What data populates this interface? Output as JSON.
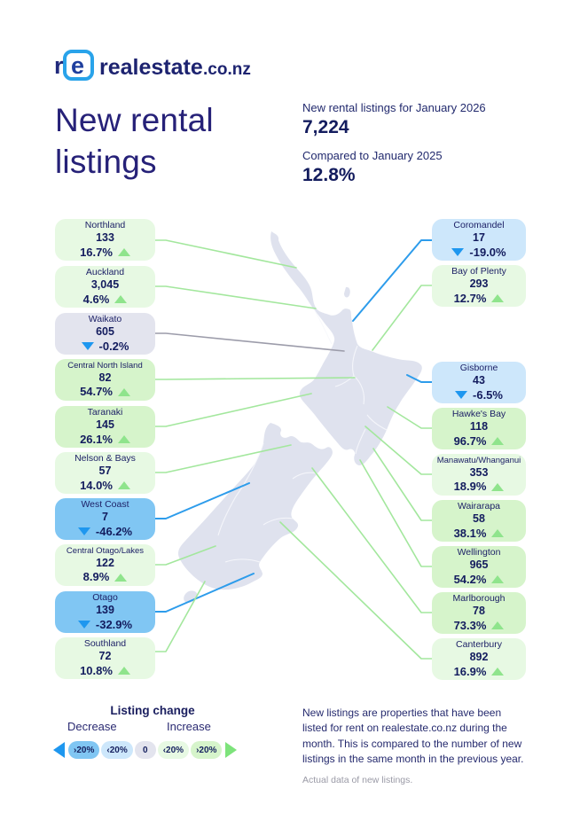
{
  "brand": {
    "logo_text": "realestate",
    "logo_suffix": ".co.nz"
  },
  "title": {
    "line1": "New rental",
    "line2": "listings"
  },
  "stats": {
    "listings_label": "New rental listings for January 2026",
    "listings_value": "7,224",
    "compare_label": "Compared to January 2025",
    "compare_value": "12.8%"
  },
  "regions": [
    {
      "name": "Northland",
      "count": "133",
      "change": "16.7%",
      "change_value": 16.7
    },
    {
      "name": "Auckland",
      "count": "3,045",
      "change": "4.6%",
      "change_value": 4.6
    },
    {
      "name": "Waikato",
      "count": "605",
      "change": "-0.2%",
      "change_value": -0.2
    },
    {
      "name": "Central North Island",
      "count": "82",
      "change": "54.7%",
      "change_value": 54.7
    },
    {
      "name": "Taranaki",
      "count": "145",
      "change": "26.1%",
      "change_value": 26.1
    },
    {
      "name": "Nelson & Bays",
      "count": "57",
      "change": "14.0%",
      "change_value": 14.0
    },
    {
      "name": "West Coast",
      "count": "7",
      "change": "-46.2%",
      "change_value": -46.2
    },
    {
      "name": "Central Otago/Lakes",
      "count": "122",
      "change": "8.9%",
      "change_value": 8.9
    },
    {
      "name": "Otago",
      "count": "139",
      "change": "-32.9%",
      "change_value": -32.9
    },
    {
      "name": "Southland",
      "count": "72",
      "change": "10.8%",
      "change_value": 10.8
    },
    {
      "name": "Coromandel",
      "count": "17",
      "change": "-19.0%",
      "change_value": -19.0
    },
    {
      "name": "Bay of Plenty",
      "count": "293",
      "change": "12.7%",
      "change_value": 12.7
    },
    {
      "name": "Gisborne",
      "count": "43",
      "change": "-6.5%",
      "change_value": -6.5
    },
    {
      "name": "Hawke's Bay",
      "count": "118",
      "change": "96.7%",
      "change_value": 96.7
    },
    {
      "name": "Manawatu/Whanganui",
      "count": "353",
      "change": "18.9%",
      "change_value": 18.9
    },
    {
      "name": "Wairarapa",
      "count": "58",
      "change": "38.1%",
      "change_value": 38.1
    },
    {
      "name": "Wellington",
      "count": "965",
      "change": "54.2%",
      "change_value": 54.2
    },
    {
      "name": "Marlborough",
      "count": "78",
      "change": "73.3%",
      "change_value": 73.3
    },
    {
      "name": "Canterbury",
      "count": "892",
      "change": "16.9%",
      "change_value": 16.9
    }
  ],
  "chart_data": {
    "type": "table",
    "title": "New rental listings",
    "total_label": "New rental listings for January 2026",
    "total_value": 7224,
    "comparison_label": "Compared to January 2025",
    "comparison_value_pct": 12.8,
    "categories": [
      "Northland",
      "Auckland",
      "Waikato",
      "Central North Island",
      "Taranaki",
      "Nelson & Bays",
      "West Coast",
      "Central Otago/Lakes",
      "Otago",
      "Southland",
      "Coromandel",
      "Bay of Plenty",
      "Gisborne",
      "Hawke's Bay",
      "Manawatu/Whanganui",
      "Wairarapa",
      "Wellington",
      "Marlborough",
      "Canterbury"
    ],
    "series": [
      {
        "name": "New rental listings (Jan 2026)",
        "values": [
          133,
          3045,
          605,
          82,
          145,
          57,
          7,
          122,
          139,
          72,
          17,
          293,
          43,
          118,
          353,
          58,
          965,
          78,
          892
        ]
      },
      {
        "name": "Change vs Jan 2025 (%)",
        "values": [
          16.7,
          4.6,
          -0.2,
          54.7,
          26.1,
          14.0,
          -46.2,
          8.9,
          -32.9,
          10.8,
          -19.0,
          12.7,
          -6.5,
          96.7,
          18.9,
          38.1,
          54.2,
          73.3,
          16.9
        ]
      }
    ],
    "legend_position": "bottom-left"
  },
  "legend": {
    "title": "Listing change",
    "decrease_label": "Decrease",
    "increase_label": "Increase",
    "pills": [
      {
        "label": "›20%",
        "tone": "blue-strong"
      },
      {
        "label": "‹20%",
        "tone": "blue-light"
      },
      {
        "label": "0",
        "tone": "grey"
      },
      {
        "label": "‹20%",
        "tone": "green-light"
      },
      {
        "label": "›20%",
        "tone": "green-strong"
      }
    ]
  },
  "footer": {
    "description": "New listings are properties that have been listed for rent on realestate.co.nz during the month. This is compared to the number of new listings in the same month in the previous year.",
    "note": "Actual data of new listings."
  },
  "colors": {
    "up_triangle": "#8fe48c",
    "down_triangle": "#1e97ef",
    "green_light": "#e7f9e3",
    "green_strong": "#d6f4cb",
    "blue_light": "#cde7fb",
    "blue_strong": "#80c6f3",
    "neutral_grey": "#e3e4ee",
    "map_fill": "#dfe2ee",
    "navy_text": "#1d2167"
  }
}
